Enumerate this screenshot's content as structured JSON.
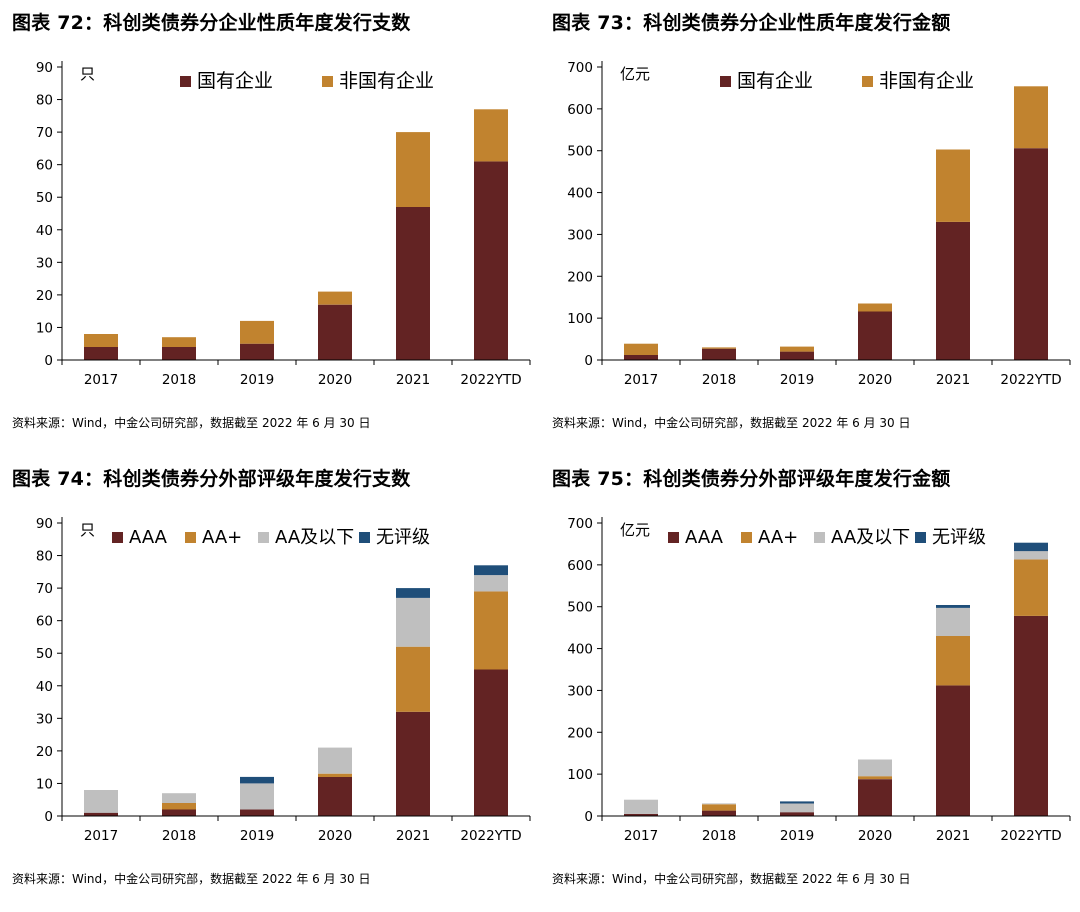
{
  "colors": {
    "soe": "#632323",
    "non_soe": "#c1832f",
    "aaa": "#632323",
    "aa_plus": "#c1832f",
    "aa_below": "#bfbfbf",
    "unrated": "#1f4e79"
  },
  "panels": [
    {
      "title": "图表 72：科创类债券分企业性质年度发行支数",
      "source": "资料来源：Wind，中金公司研究部，数据截至 2022 年 6 月 30 日"
    },
    {
      "title": "图表 73：科创类债券分企业性质年度发行金额",
      "source": "资料来源：Wind，中金公司研究部，数据截至 2022 年 6 月 30 日"
    },
    {
      "title": "图表 74：科创类债券分外部评级年度发行支数",
      "source": "资料来源：Wind，中金公司研究部，数据截至 2022 年 6 月 30 日"
    },
    {
      "title": "图表 75：科创类债券分外部评级年度发行金额",
      "source": "资料来源：Wind，中金公司研究部，数据截至 2022 年 6 月 30 日"
    }
  ],
  "chart_data": [
    {
      "type": "bar",
      "stacked": true,
      "unit": "只",
      "categories": [
        "2017",
        "2018",
        "2019",
        "2020",
        "2021",
        "2022YTD"
      ],
      "series": [
        {
          "name": "国有企业",
          "values": [
            4,
            4,
            5,
            17,
            47,
            61
          ],
          "color_key": "soe"
        },
        {
          "name": "非国有企业",
          "values": [
            4,
            3,
            7,
            4,
            23,
            16
          ],
          "color_key": "non_soe"
        }
      ],
      "ylim": [
        0,
        90
      ],
      "yticks": [
        0,
        10,
        20,
        30,
        40,
        50,
        60,
        70,
        80,
        90
      ],
      "legend": "top",
      "grid": false
    },
    {
      "type": "bar",
      "stacked": true,
      "unit": "亿元",
      "categories": [
        "2017",
        "2018",
        "2019",
        "2020",
        "2021",
        "2022YTD"
      ],
      "series": [
        {
          "name": "国有企业",
          "values": [
            12,
            27,
            20,
            116,
            330,
            506
          ],
          "color_key": "soe"
        },
        {
          "name": "非国有企业",
          "values": [
            27,
            3,
            12,
            19,
            173,
            148
          ],
          "color_key": "non_soe"
        }
      ],
      "ylim": [
        0,
        700
      ],
      "yticks": [
        0,
        100,
        200,
        300,
        400,
        500,
        600,
        700
      ],
      "legend": "top",
      "grid": false
    },
    {
      "type": "bar",
      "stacked": true,
      "unit": "只",
      "categories": [
        "2017",
        "2018",
        "2019",
        "2020",
        "2021",
        "2022YTD"
      ],
      "series": [
        {
          "name": "AAA",
          "values": [
            1,
            2,
            2,
            12,
            32,
            45
          ],
          "color_key": "aaa"
        },
        {
          "name": "AA+",
          "values": [
            0,
            2,
            0,
            1,
            20,
            24
          ],
          "color_key": "aa_plus"
        },
        {
          "name": "AA及以下",
          "values": [
            7,
            3,
            8,
            8,
            15,
            5
          ],
          "color_key": "aa_below"
        },
        {
          "name": "无评级",
          "values": [
            0,
            0,
            2,
            0,
            3,
            3
          ],
          "color_key": "unrated"
        }
      ],
      "ylim": [
        0,
        90
      ],
      "yticks": [
        0,
        10,
        20,
        30,
        40,
        50,
        60,
        70,
        80,
        90
      ],
      "legend": "top",
      "grid": false
    },
    {
      "type": "bar",
      "stacked": true,
      "unit": "亿元",
      "categories": [
        "2017",
        "2018",
        "2019",
        "2020",
        "2021",
        "2022YTD"
      ],
      "series": [
        {
          "name": "AAA",
          "values": [
            5,
            13,
            9,
            88,
            312,
            478
          ],
          "color_key": "aaa"
        },
        {
          "name": "AA+",
          "values": [
            0,
            15,
            0,
            7,
            118,
            135
          ],
          "color_key": "aa_plus"
        },
        {
          "name": "AA及以下",
          "values": [
            34,
            2,
            21,
            40,
            67,
            20
          ],
          "color_key": "aa_below"
        },
        {
          "name": "无评级",
          "values": [
            0,
            0,
            5,
            0,
            7,
            20
          ],
          "color_key": "unrated"
        }
      ],
      "ylim": [
        0,
        700
      ],
      "yticks": [
        0,
        100,
        200,
        300,
        400,
        500,
        600,
        700
      ],
      "legend": "top",
      "grid": false
    }
  ]
}
